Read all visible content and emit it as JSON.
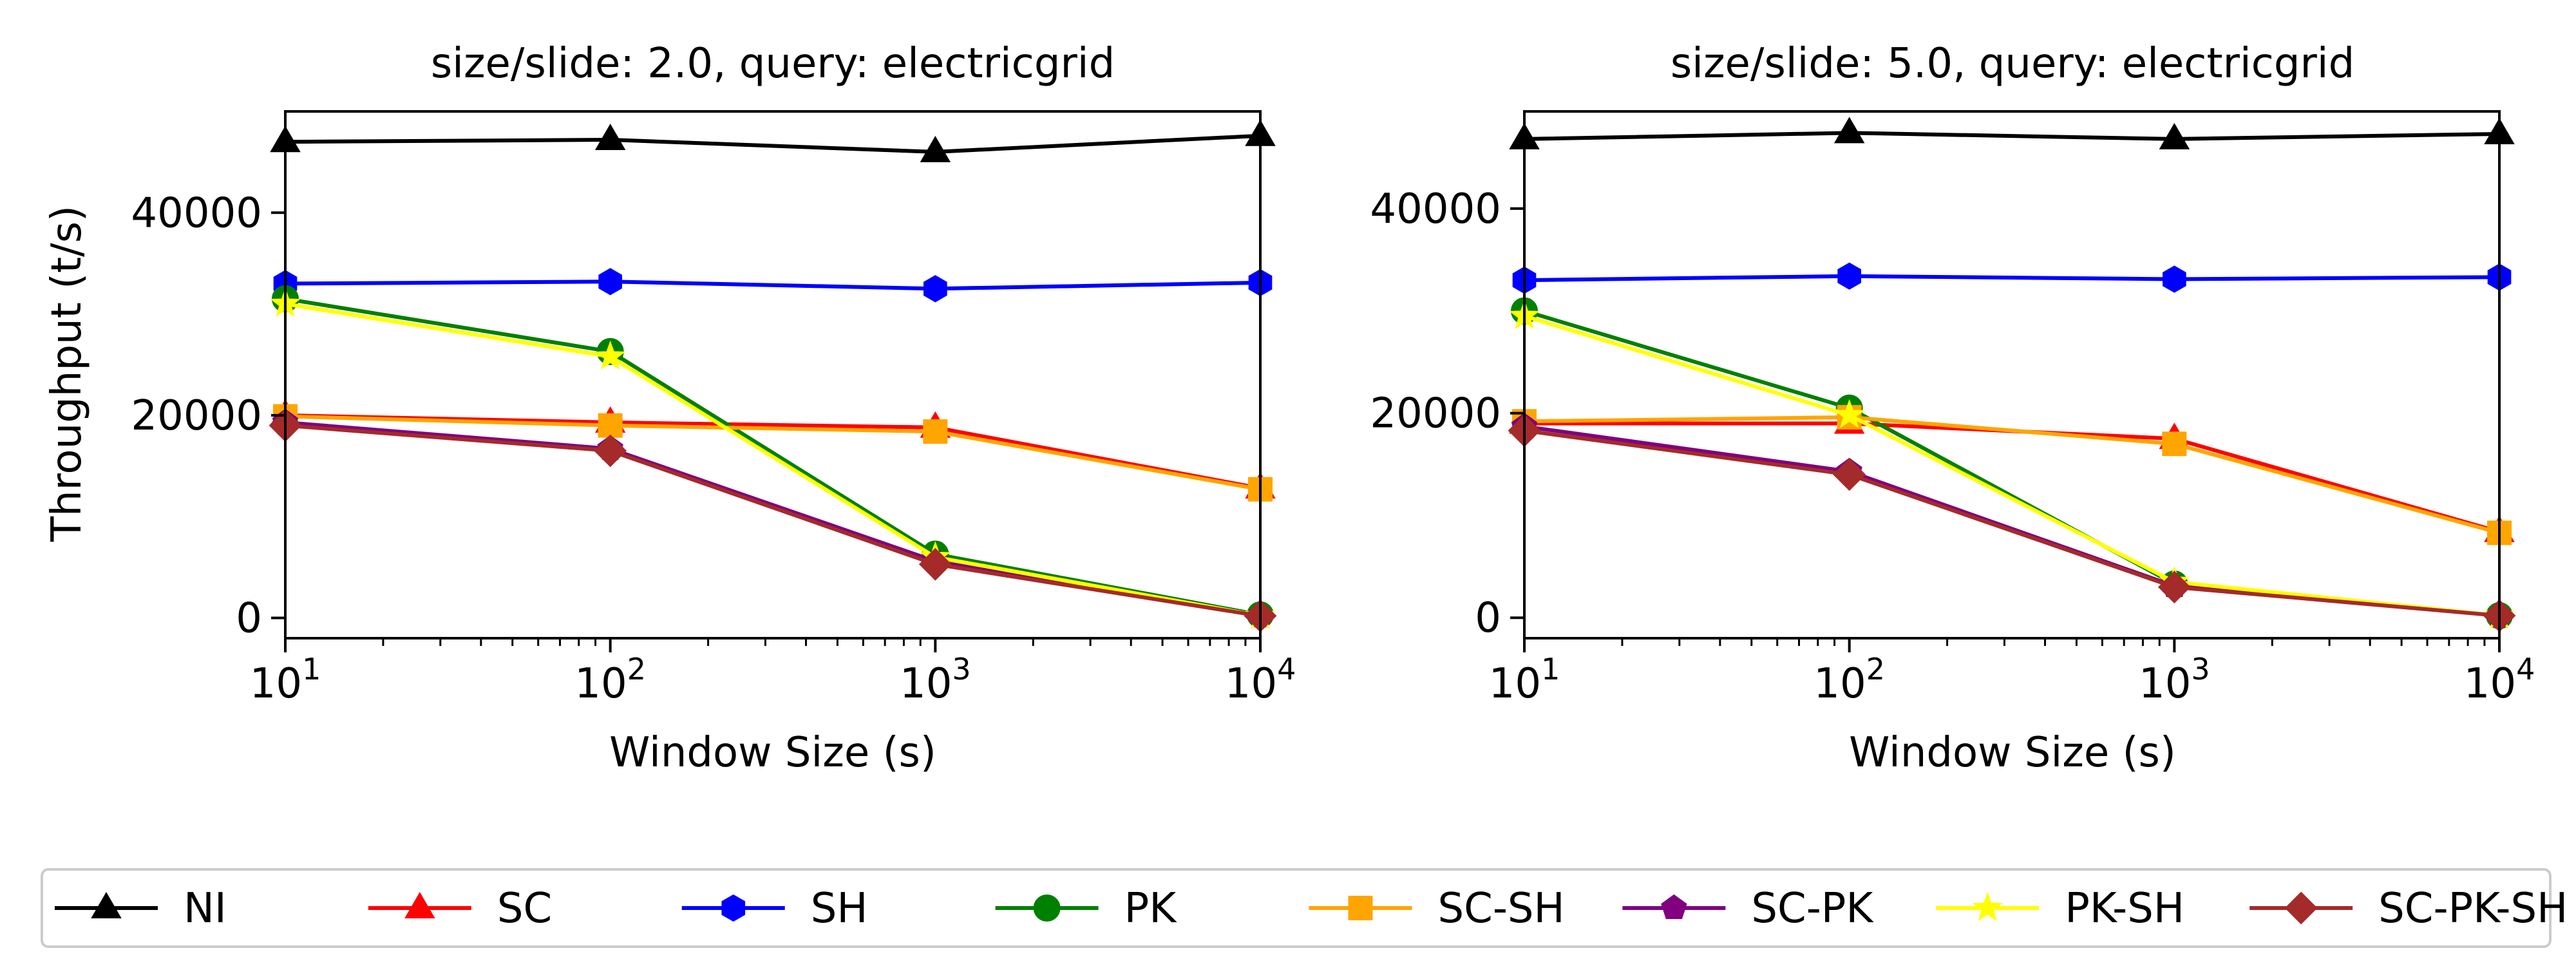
{
  "chart_data": [
    {
      "type": "line",
      "title": "size/slide: 2.0, query: electricgrid",
      "xlabel": "Window Size (s)",
      "ylabel": "Throughput (t/s)",
      "xscale": "log",
      "xlim": [
        10,
        10000
      ],
      "ylim": [
        -2000,
        50000
      ],
      "x": [
        10,
        100,
        1000,
        10000
      ],
      "x_ticks": [
        10,
        100,
        1000,
        10000
      ],
      "x_tick_labels": [
        {
          "base": "10",
          "exp": "1"
        },
        {
          "base": "10",
          "exp": "2"
        },
        {
          "base": "10",
          "exp": "3"
        },
        {
          "base": "10",
          "exp": "4"
        }
      ],
      "y_ticks": [
        0,
        20000,
        40000
      ],
      "y_tick_labels": [
        "0",
        "20000",
        "40000"
      ],
      "grid": false,
      "series": [
        {
          "name": "NI",
          "values": [
            47000,
            47200,
            46000,
            47600
          ]
        },
        {
          "name": "SC",
          "values": [
            20000,
            19300,
            18800,
            12800
          ]
        },
        {
          "name": "SH",
          "values": [
            33000,
            33200,
            32500,
            33100
          ]
        },
        {
          "name": "PK",
          "values": [
            31500,
            26300,
            6300,
            300
          ]
        },
        {
          "name": "SC-SH",
          "values": [
            19900,
            19000,
            18400,
            12700
          ]
        },
        {
          "name": "SC-PK",
          "values": [
            19300,
            16700,
            5600,
            200
          ]
        },
        {
          "name": "PK-SH",
          "values": [
            31000,
            25800,
            6000,
            200
          ]
        },
        {
          "name": "SC-PK-SH",
          "values": [
            19000,
            16500,
            5300,
            200
          ]
        }
      ]
    },
    {
      "type": "line",
      "title": "size/slide: 5.0, query: electricgrid",
      "xlabel": "Window Size (s)",
      "ylabel": "",
      "xscale": "log",
      "xlim": [
        10,
        10000
      ],
      "ylim": [
        -2000,
        49500
      ],
      "x": [
        10,
        100,
        1000,
        10000
      ],
      "x_ticks": [
        10,
        100,
        1000,
        10000
      ],
      "x_tick_labels": [
        {
          "base": "10",
          "exp": "1"
        },
        {
          "base": "10",
          "exp": "2"
        },
        {
          "base": "10",
          "exp": "3"
        },
        {
          "base": "10",
          "exp": "4"
        }
      ],
      "y_ticks": [
        0,
        20000,
        40000
      ],
      "y_tick_labels": [
        "0",
        "20000",
        "40000"
      ],
      "grid": false,
      "series": [
        {
          "name": "NI",
          "values": [
            46800,
            47400,
            46800,
            47300
          ]
        },
        {
          "name": "SC",
          "values": [
            19000,
            19000,
            17500,
            8400
          ]
        },
        {
          "name": "SH",
          "values": [
            33000,
            33400,
            33100,
            33300
          ]
        },
        {
          "name": "PK",
          "values": [
            30000,
            20500,
            3300,
            200
          ]
        },
        {
          "name": "SC-SH",
          "values": [
            19200,
            19600,
            17000,
            8300
          ]
        },
        {
          "name": "SC-PK",
          "values": [
            18700,
            14300,
            3100,
            200
          ]
        },
        {
          "name": "PK-SH",
          "values": [
            29500,
            19800,
            3500,
            200
          ]
        },
        {
          "name": "SC-PK-SH",
          "values": [
            18300,
            14000,
            3000,
            200
          ]
        }
      ]
    }
  ],
  "legend": {
    "placement": "bottom",
    "entries": [
      {
        "label": "NI",
        "color": "#000000",
        "marker": "triangle-up"
      },
      {
        "label": "SC",
        "color": "#ff0000",
        "marker": "triangle-up"
      },
      {
        "label": "SH",
        "color": "#0000ff",
        "marker": "hexagon"
      },
      {
        "label": "PK",
        "color": "#008000",
        "marker": "circle"
      },
      {
        "label": "SC-SH",
        "color": "#ffa500",
        "marker": "square"
      },
      {
        "label": "SC-PK",
        "color": "#800080",
        "marker": "pentagon"
      },
      {
        "label": "PK-SH",
        "color": "#ffff00",
        "marker": "star"
      },
      {
        "label": "SC-PK-SH",
        "color": "#a52a2a",
        "marker": "diamond"
      }
    ]
  }
}
